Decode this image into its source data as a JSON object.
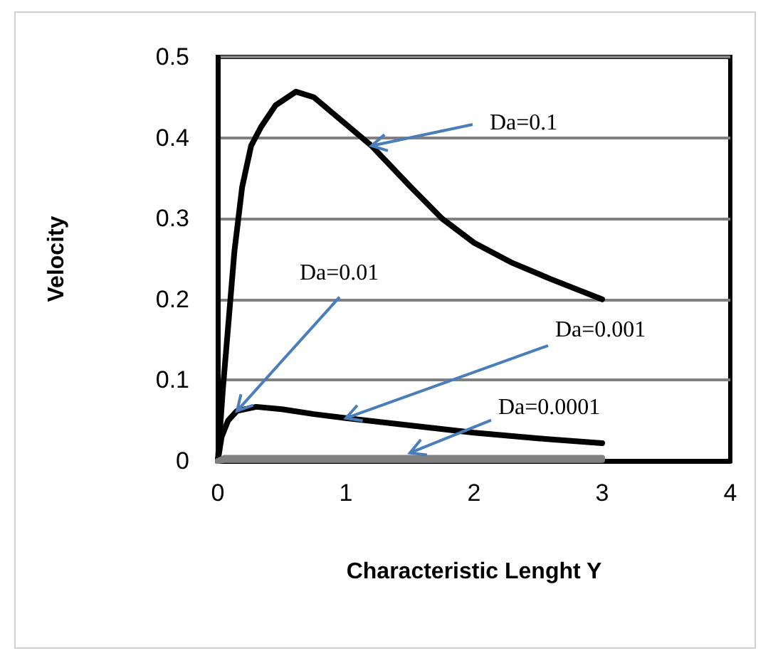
{
  "chart_data": {
    "type": "line",
    "xlabel": "Characteristic Lenght Y",
    "ylabel": "Velocity",
    "xlim": [
      0,
      4
    ],
    "xticks": [
      0,
      1,
      2,
      3,
      4
    ],
    "ylim": [
      0,
      0.5
    ],
    "yticks": [
      0,
      0.1,
      0.2,
      0.3,
      0.4,
      0.5
    ],
    "grid": "y",
    "marker": "none",
    "series": [
      {
        "color": "#000000",
        "x": [
          0,
          0.04,
          0.08,
          0.13,
          0.19,
          0.26,
          0.34,
          0.45,
          0.61,
          0.75,
          0.9,
          1.05,
          1.2,
          1.5,
          1.75,
          2,
          2.3,
          2.6,
          3
        ],
        "values": [
          0,
          0.09,
          0.165,
          0.26,
          0.339,
          0.39,
          0.414,
          0.44,
          0.457,
          0.45,
          0.43,
          0.41,
          0.39,
          0.34,
          0.3,
          0.27,
          0.245,
          0.225,
          0.2
        ]
      },
      {
        "color": "#000000",
        "x": [
          0,
          0.03,
          0.08,
          0.15,
          0.3,
          0.5,
          0.75,
          1,
          1.5,
          2,
          2.5,
          3
        ],
        "values": [
          0,
          0.03,
          0.05,
          0.062,
          0.067,
          0.064,
          0.058,
          0.053,
          0.044,
          0.035,
          0.028,
          0.022
        ]
      },
      {
        "color": "#808080",
        "x": [
          0,
          0.05,
          0.5,
          1,
          2,
          3
        ],
        "values": [
          0,
          0.004,
          0.004,
          0.004,
          0.004,
          0.004
        ]
      },
      {
        "color": "#808080",
        "x": [
          0,
          0.05,
          1,
          2,
          3
        ],
        "values": [
          0,
          0.001,
          0.001,
          0.001,
          0.001
        ]
      }
    ],
    "annotations": [
      {
        "text": "Da=0.1",
        "x": 1.2,
        "y": 0.39
      },
      {
        "text": "Da=0.01",
        "x": 0.15,
        "y": 0.062
      },
      {
        "text": "Da=0.001",
        "x": 1,
        "y": 0.053
      },
      {
        "text": "Da=0.0001",
        "x": 1.5,
        "y": 0.01
      }
    ]
  }
}
